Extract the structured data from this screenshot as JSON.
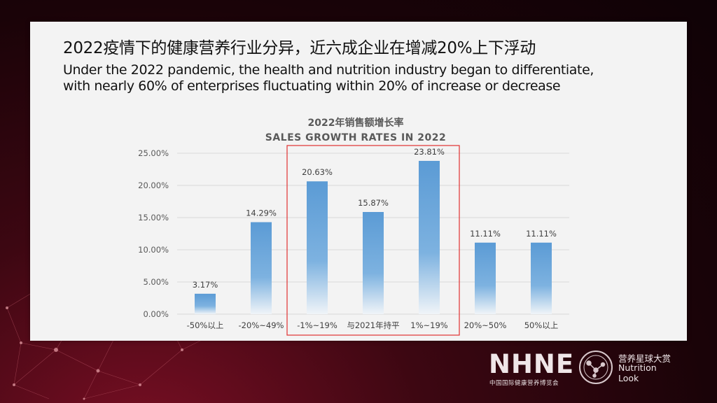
{
  "slide": {
    "headline_cn": "2022疫情下的健康营养行业分异，近六成企业在增减20%上下浮动",
    "headline_en_line1": "Under the 2022 pandemic, the health and nutrition industry began to differentiate,",
    "headline_en_line2": "with nearly 60% of enterprises fluctuating within 20% of increase or decrease"
  },
  "chart_data": {
    "type": "bar",
    "title": "2022年销售额增长率",
    "subtitle": "SALES GROWTH RATES IN 2022",
    "categories": [
      "-50%以上",
      "-20%~49%",
      "-1%~19%",
      "与2021年持平",
      "1%~19%",
      "20%~50%",
      "50%以上"
    ],
    "values": [
      3.17,
      14.29,
      20.63,
      15.87,
      23.81,
      11.11,
      11.11
    ],
    "value_labels": [
      "3.17%",
      "14.29%",
      "20.63%",
      "15.87%",
      "23.81%",
      "11.11%",
      "11.11%"
    ],
    "ylim": [
      0,
      25
    ],
    "yticks": [
      0,
      5,
      10,
      15,
      20,
      25
    ],
    "ytick_labels": [
      "0.00%",
      "5.00%",
      "10.00%",
      "15.00%",
      "20.00%",
      "25.00%"
    ],
    "grid": true,
    "highlight_range": [
      2,
      4
    ],
    "bar_color": "#5b9bd5",
    "highlight_color": "#e03030"
  },
  "logos": {
    "brand1": "NHNE",
    "brand1_sub": "中国国际健康营养博览会",
    "brand2_cn": "营养星球大赏",
    "brand2_en1": "Nutrition",
    "brand2_en2": "Look"
  }
}
